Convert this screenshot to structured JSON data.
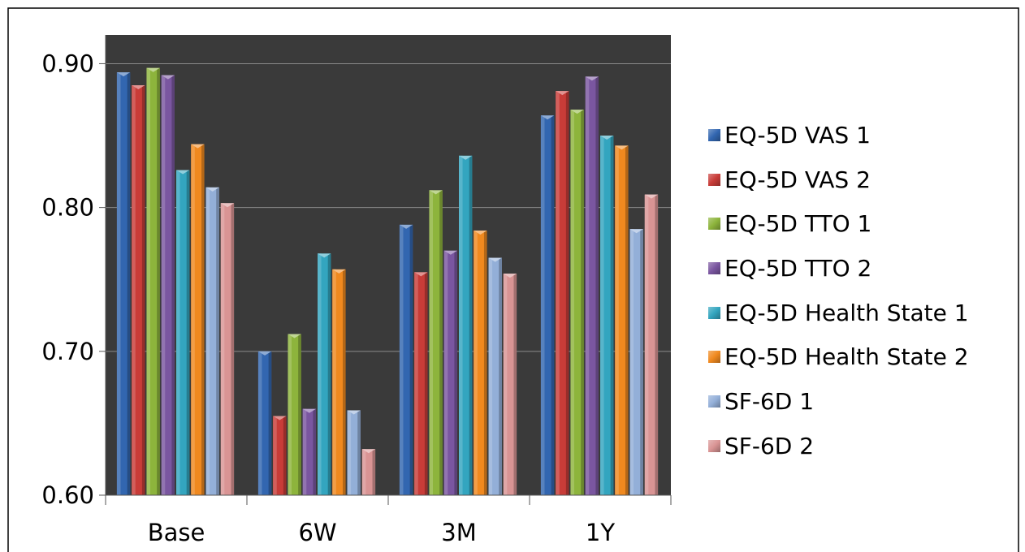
{
  "chart_data": {
    "type": "bar",
    "title": "",
    "xlabel": "",
    "ylabel": "",
    "categories": [
      "Base",
      "6W",
      "3M",
      "1Y"
    ],
    "ylim": [
      0.6,
      0.92
    ],
    "yticks": [
      "0.60",
      "0.70",
      "0.80",
      "0.90"
    ],
    "ytick_values": [
      0.6,
      0.7,
      0.8,
      0.9
    ],
    "grid": true,
    "legend_position": "right",
    "plot_background": "#3a3a3a",
    "series": [
      {
        "name": "EQ-5D VAS 1",
        "color": "#3266b0",
        "values": [
          0.894,
          0.7,
          0.788,
          0.864
        ]
      },
      {
        "name": "EQ-5D VAS 2",
        "color": "#c83c38",
        "values": [
          0.885,
          0.655,
          0.755,
          0.881
        ]
      },
      {
        "name": "EQ-5D TTO 1",
        "color": "#8db43c",
        "values": [
          0.897,
          0.712,
          0.812,
          0.868
        ]
      },
      {
        "name": "EQ-5D TTO 2",
        "color": "#7a56a0",
        "values": [
          0.892,
          0.66,
          0.77,
          0.891
        ]
      },
      {
        "name": "EQ-5D Health State 1",
        "color": "#33a5bf",
        "values": [
          0.826,
          0.768,
          0.836,
          0.85
        ]
      },
      {
        "name": "EQ-5D Health State 2",
        "color": "#f0891f",
        "values": [
          0.844,
          0.757,
          0.784,
          0.843
        ]
      },
      {
        "name": "SF-6D 1",
        "color": "#93afd8",
        "values": [
          0.814,
          0.659,
          0.765,
          0.785
        ]
      },
      {
        "name": "SF-6D 2",
        "color": "#d99494",
        "values": [
          0.803,
          0.632,
          0.754,
          0.809
        ]
      }
    ]
  }
}
